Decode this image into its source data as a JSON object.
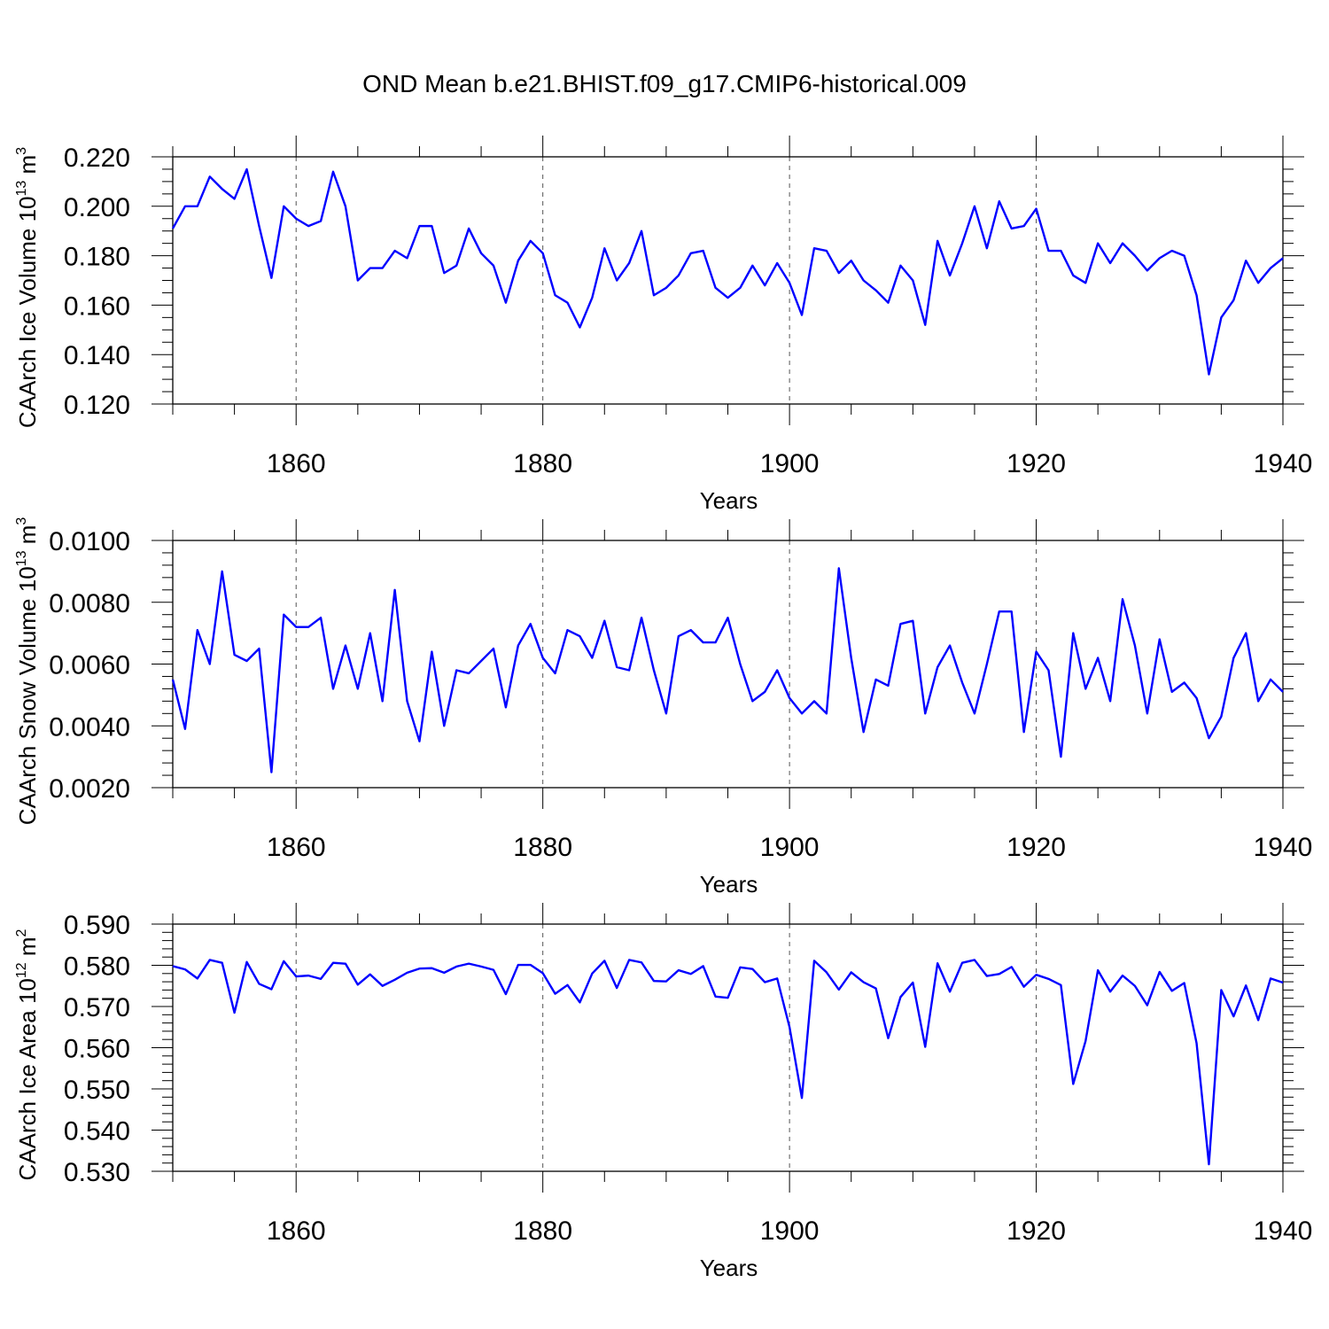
{
  "title": "OND Mean b.e21.BHIST.f09_g17.CMIP6-historical.009",
  "line_color": "#0000ff",
  "chart_data": [
    {
      "type": "line",
      "xlabel": "Years",
      "ylabel": "CAArch Ice Volume 10",
      "ylabel_exp": "13",
      "ylabel_unit": " m",
      "ylabel_unit_exp": "3",
      "xlim": [
        1850,
        1940
      ],
      "ylim": [
        0.12,
        0.22
      ],
      "x_ticks": [
        1860,
        1880,
        1900,
        1920,
        1940
      ],
      "x_tick_labels": [
        "1860",
        "1880",
        "1900",
        "1920",
        "1940"
      ],
      "y_ticks": [
        0.12,
        0.14,
        0.16,
        0.18,
        0.2,
        0.22
      ],
      "y_tick_labels": [
        "0.120",
        "0.140",
        "0.160",
        "0.180",
        "0.200",
        "0.220"
      ],
      "x_minor_step": 5,
      "y_minor_step": 0.005,
      "grid_x": [
        1860,
        1880,
        1900,
        1920
      ],
      "series": [
        {
          "name": "CAArch Ice Volume",
          "x_start": 1850,
          "values": [
            0.191,
            0.2,
            0.2,
            0.212,
            0.207,
            0.203,
            0.215,
            0.192,
            0.171,
            0.2,
            0.195,
            0.192,
            0.194,
            0.214,
            0.2,
            0.17,
            0.175,
            0.175,
            0.182,
            0.179,
            0.192,
            0.192,
            0.173,
            0.176,
            0.191,
            0.181,
            0.176,
            0.161,
            0.178,
            0.186,
            0.181,
            0.164,
            0.161,
            0.151,
            0.163,
            0.183,
            0.17,
            0.177,
            0.19,
            0.164,
            0.167,
            0.172,
            0.181,
            0.182,
            0.167,
            0.163,
            0.167,
            0.176,
            0.168,
            0.177,
            0.169,
            0.156,
            0.183,
            0.182,
            0.173,
            0.178,
            0.17,
            0.166,
            0.161,
            0.176,
            0.17,
            0.152,
            0.186,
            0.172,
            0.185,
            0.2,
            0.183,
            0.202,
            0.191,
            0.192,
            0.199,
            0.182,
            0.182,
            0.172,
            0.169,
            0.185,
            0.177,
            0.185,
            0.18,
            0.174,
            0.179,
            0.182,
            0.18,
            0.164,
            0.132,
            0.155,
            0.162,
            0.178,
            0.169,
            0.175,
            0.179
          ]
        }
      ]
    },
    {
      "type": "line",
      "xlabel": "Years",
      "ylabel": "CAArch Snow Volume 10",
      "ylabel_exp": "13",
      "ylabel_unit": " m",
      "ylabel_unit_exp": "3",
      "xlim": [
        1850,
        1940
      ],
      "ylim": [
        0.002,
        0.01
      ],
      "x_ticks": [
        1860,
        1880,
        1900,
        1920,
        1940
      ],
      "x_tick_labels": [
        "1860",
        "1880",
        "1900",
        "1920",
        "1940"
      ],
      "y_ticks": [
        0.002,
        0.004,
        0.006,
        0.008,
        0.01
      ],
      "y_tick_labels": [
        "0.0020",
        "0.0040",
        "0.0060",
        "0.0080",
        "0.0100"
      ],
      "x_minor_step": 5,
      "y_minor_step": 0.0004,
      "grid_x": [
        1860,
        1880,
        1900,
        1920
      ],
      "series": [
        {
          "name": "CAArch Snow Volume",
          "x_start": 1850,
          "values": [
            0.0055,
            0.0039,
            0.0071,
            0.006,
            0.009,
            0.0063,
            0.0061,
            0.0065,
            0.0025,
            0.0076,
            0.0072,
            0.0072,
            0.0075,
            0.0052,
            0.0066,
            0.0052,
            0.007,
            0.0048,
            0.0084,
            0.0048,
            0.0035,
            0.0064,
            0.004,
            0.0058,
            0.0057,
            0.0061,
            0.0065,
            0.0046,
            0.0066,
            0.0073,
            0.0062,
            0.0057,
            0.0071,
            0.0069,
            0.0062,
            0.0074,
            0.0059,
            0.0058,
            0.0075,
            0.0058,
            0.0044,
            0.0069,
            0.0071,
            0.0067,
            0.0067,
            0.0075,
            0.006,
            0.0048,
            0.0051,
            0.0058,
            0.0049,
            0.0044,
            0.0048,
            0.0044,
            0.0091,
            0.0062,
            0.0038,
            0.0055,
            0.0053,
            0.0073,
            0.0074,
            0.0044,
            0.0059,
            0.0066,
            0.0054,
            0.0044,
            0.006,
            0.0077,
            0.0077,
            0.0038,
            0.0064,
            0.0058,
            0.003,
            0.007,
            0.0052,
            0.0062,
            0.0048,
            0.0081,
            0.0066,
            0.0044,
            0.0068,
            0.0051,
            0.0054,
            0.0049,
            0.0036,
            0.0043,
            0.0062,
            0.007,
            0.0048,
            0.0055,
            0.0051
          ]
        }
      ]
    },
    {
      "type": "line",
      "xlabel": "Years",
      "ylabel": "CAArch Ice Area 10",
      "ylabel_exp": "12",
      "ylabel_unit": " m",
      "ylabel_unit_exp": "2",
      "xlim": [
        1850,
        1940
      ],
      "ylim": [
        0.53,
        0.59
      ],
      "x_ticks": [
        1860,
        1880,
        1900,
        1920,
        1940
      ],
      "x_tick_labels": [
        "1860",
        "1880",
        "1900",
        "1920",
        "1940"
      ],
      "y_ticks": [
        0.53,
        0.54,
        0.55,
        0.56,
        0.57,
        0.58,
        0.59
      ],
      "y_tick_labels": [
        "0.530",
        "0.540",
        "0.550",
        "0.560",
        "0.570",
        "0.580",
        "0.590"
      ],
      "x_minor_step": 5,
      "y_minor_step": 0.002,
      "grid_x": [
        1860,
        1880,
        1900,
        1920
      ],
      "series": [
        {
          "name": "CAArch Ice Area",
          "x_start": 1850,
          "values": [
            0.5798,
            0.579,
            0.5768,
            0.5813,
            0.5806,
            0.5685,
            0.5808,
            0.5755,
            0.5742,
            0.581,
            0.5773,
            0.5775,
            0.5767,
            0.5806,
            0.5804,
            0.5753,
            0.5778,
            0.575,
            0.5765,
            0.5782,
            0.5792,
            0.5793,
            0.5782,
            0.5797,
            0.5804,
            0.5797,
            0.5789,
            0.573,
            0.5801,
            0.5801,
            0.5781,
            0.5731,
            0.5752,
            0.571,
            0.578,
            0.5811,
            0.5745,
            0.5813,
            0.5807,
            0.5762,
            0.5761,
            0.5788,
            0.5779,
            0.5798,
            0.5724,
            0.5721,
            0.5795,
            0.5791,
            0.5759,
            0.5768,
            0.565,
            0.5478,
            0.5811,
            0.5783,
            0.5741,
            0.5783,
            0.5759,
            0.5744,
            0.5623,
            0.5723,
            0.5758,
            0.5602,
            0.5805,
            0.5736,
            0.5806,
            0.5813,
            0.5774,
            0.5779,
            0.5796,
            0.5748,
            0.5777,
            0.5767,
            0.5752,
            0.5512,
            0.5616,
            0.5788,
            0.5736,
            0.5775,
            0.575,
            0.5703,
            0.5784,
            0.5738,
            0.5757,
            0.5611,
            0.5317,
            0.574,
            0.5676,
            0.5751,
            0.5667,
            0.5768,
            0.5758
          ]
        }
      ]
    }
  ]
}
